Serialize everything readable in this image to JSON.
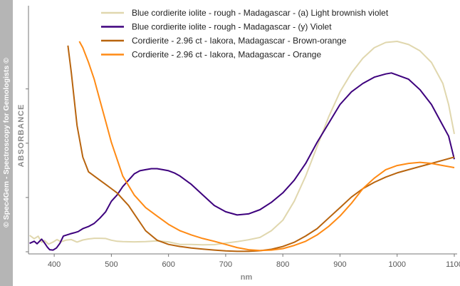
{
  "side_label": "© Spec4Gem - Spectroscopy for Gemologists ©",
  "chart_data": {
    "type": "line",
    "title": "",
    "xlabel": "nm",
    "ylabel": "ABSORBANCE",
    "xlim": [
      355,
      1105
    ],
    "ylim": [
      0,
      1
    ],
    "xticks": [
      400,
      500,
      600,
      700,
      800,
      900,
      1000,
      1100
    ],
    "yticks_unlabeled": [
      0,
      0.258,
      0.516,
      0.774
    ],
    "grid": false,
    "legend_position": "top-center",
    "series": [
      {
        "name": "Blue cordierite iolite - rough - Madagascar - (a) Light brownish violet",
        "color": "#e0d7ae",
        "x": [
          357,
          365,
          372,
          378,
          383,
          390,
          398,
          405,
          412,
          420,
          430,
          440,
          450,
          460,
          470,
          480,
          490,
          500,
          510,
          520,
          540,
          560,
          580,
          600,
          620,
          640,
          660,
          680,
          700,
          720,
          740,
          760,
          780,
          800,
          820,
          840,
          860,
          880,
          900,
          920,
          940,
          960,
          980,
          1000,
          1020,
          1040,
          1060,
          1080,
          1090,
          1100
        ],
        "y": [
          0.078,
          0.062,
          0.074,
          0.045,
          0.054,
          0.036,
          0.046,
          0.058,
          0.047,
          0.055,
          0.058,
          0.046,
          0.056,
          0.061,
          0.064,
          0.064,
          0.063,
          0.055,
          0.05,
          0.048,
          0.047,
          0.048,
          0.052,
          0.047,
          0.035,
          0.035,
          0.033,
          0.034,
          0.041,
          0.048,
          0.057,
          0.068,
          0.1,
          0.15,
          0.24,
          0.36,
          0.5,
          0.64,
          0.76,
          0.85,
          0.92,
          0.97,
          0.995,
          1.0,
          0.985,
          0.955,
          0.9,
          0.8,
          0.7,
          0.56
        ]
      },
      {
        "name": "Blue cordierite iolite - rough - Madagascar - (y) Violet",
        "color": "#3d007d",
        "x": [
          357,
          365,
          370,
          378,
          383,
          388,
          392,
          398,
          404,
          410,
          416,
          422,
          428,
          435,
          442,
          450,
          460,
          470,
          480,
          490,
          500,
          510,
          520,
          530,
          540,
          550,
          560,
          570,
          580,
          590,
          600,
          610,
          620,
          640,
          660,
          680,
          700,
          720,
          740,
          760,
          780,
          800,
          820,
          840,
          860,
          880,
          900,
          920,
          940,
          960,
          980,
          990,
          1000,
          1020,
          1040,
          1060,
          1080,
          1090,
          1100
        ],
        "y": [
          0.04,
          0.05,
          0.038,
          0.06,
          0.042,
          0.022,
          0.01,
          0.008,
          0.018,
          0.04,
          0.075,
          0.08,
          0.085,
          0.09,
          0.096,
          0.11,
          0.12,
          0.135,
          0.16,
          0.19,
          0.24,
          0.27,
          0.31,
          0.34,
          0.37,
          0.385,
          0.39,
          0.395,
          0.395,
          0.39,
          0.385,
          0.375,
          0.36,
          0.32,
          0.27,
          0.22,
          0.19,
          0.175,
          0.18,
          0.2,
          0.235,
          0.28,
          0.34,
          0.42,
          0.52,
          0.61,
          0.7,
          0.76,
          0.8,
          0.83,
          0.845,
          0.85,
          0.84,
          0.82,
          0.77,
          0.7,
          0.6,
          0.55,
          0.44
        ]
      },
      {
        "name": "Cordierite - 2.96 ct -  Iakora, Madagascar - Brown-orange",
        "color": "#b8640e",
        "x": [
          424,
          430,
          440,
          450,
          460,
          470,
          480,
          490,
          500,
          510,
          520,
          530,
          540,
          560,
          580,
          600,
          620,
          640,
          660,
          680,
          700,
          720,
          740,
          760,
          780,
          800,
          820,
          840,
          860,
          880,
          900,
          920,
          940,
          960,
          980,
          1000,
          1020,
          1040,
          1060,
          1080,
          1100
        ],
        "y": [
          0.98,
          0.85,
          0.6,
          0.45,
          0.38,
          0.36,
          0.34,
          0.32,
          0.3,
          0.28,
          0.25,
          0.22,
          0.18,
          0.1,
          0.055,
          0.035,
          0.025,
          0.018,
          0.013,
          0.008,
          0.004,
          0.002,
          0.002,
          0.005,
          0.012,
          0.025,
          0.045,
          0.075,
          0.11,
          0.16,
          0.21,
          0.26,
          0.3,
          0.33,
          0.355,
          0.375,
          0.39,
          0.405,
          0.42,
          0.435,
          0.45
        ]
      },
      {
        "name": "Cordierite - 2.96 ct -  Iakora, Madagascar - Orange",
        "color": "#ff8a14",
        "x": [
          444,
          450,
          460,
          470,
          480,
          490,
          500,
          510,
          520,
          540,
          560,
          580,
          600,
          620,
          640,
          660,
          680,
          700,
          720,
          740,
          760,
          780,
          800,
          820,
          840,
          860,
          880,
          900,
          920,
          940,
          960,
          980,
          1000,
          1020,
          1040,
          1060,
          1080,
          1100
        ],
        "y": [
          1.0,
          0.97,
          0.9,
          0.82,
          0.72,
          0.62,
          0.52,
          0.44,
          0.36,
          0.27,
          0.21,
          0.17,
          0.13,
          0.1,
          0.08,
          0.063,
          0.05,
          0.035,
          0.02,
          0.01,
          0.006,
          0.008,
          0.015,
          0.03,
          0.05,
          0.08,
          0.12,
          0.17,
          0.23,
          0.3,
          0.35,
          0.39,
          0.41,
          0.42,
          0.425,
          0.42,
          0.41,
          0.4
        ]
      }
    ]
  }
}
